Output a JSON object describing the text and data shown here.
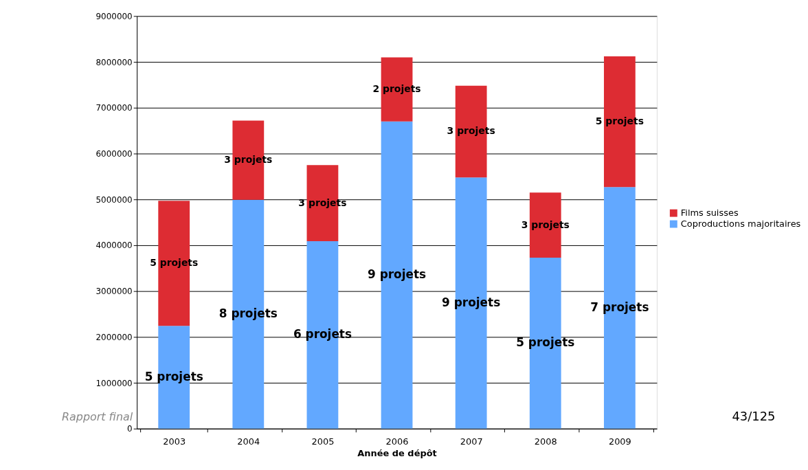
{
  "chart_data": {
    "type": "bar",
    "stacked": true,
    "xlabel": "Année de dépôt",
    "categories": [
      "2003",
      "2004",
      "2005",
      "2006",
      "2007",
      "2008",
      "2009"
    ],
    "series": [
      {
        "name": "Coproductions majoritaires",
        "color": "#62a8ff",
        "values": [
          2240000,
          4990000,
          4090000,
          6700000,
          5480000,
          3730000,
          5270000
        ]
      },
      {
        "name": "Films suisses",
        "color": "#dd2c33",
        "values": [
          2730000,
          1730000,
          1660000,
          1400000,
          2000000,
          1420000,
          2850000
        ]
      }
    ],
    "ylim": [
      0,
      9000000
    ],
    "yticks": [
      0,
      1000000,
      2000000,
      3000000,
      4000000,
      5000000,
      6000000,
      7000000,
      8000000,
      9000000
    ],
    "grid": "y",
    "legend": "right",
    "annotations": [
      "5 projets",
      "8 projets",
      "6 projets",
      "9 projets",
      "9 projets",
      "5 projets",
      "7 projets",
      "5 projets",
      "3 projets",
      "3 projets",
      "2 projets",
      "3 projets",
      "3 projets",
      "5 projets",
      "Rapport final",
      "43/125"
    ]
  }
}
